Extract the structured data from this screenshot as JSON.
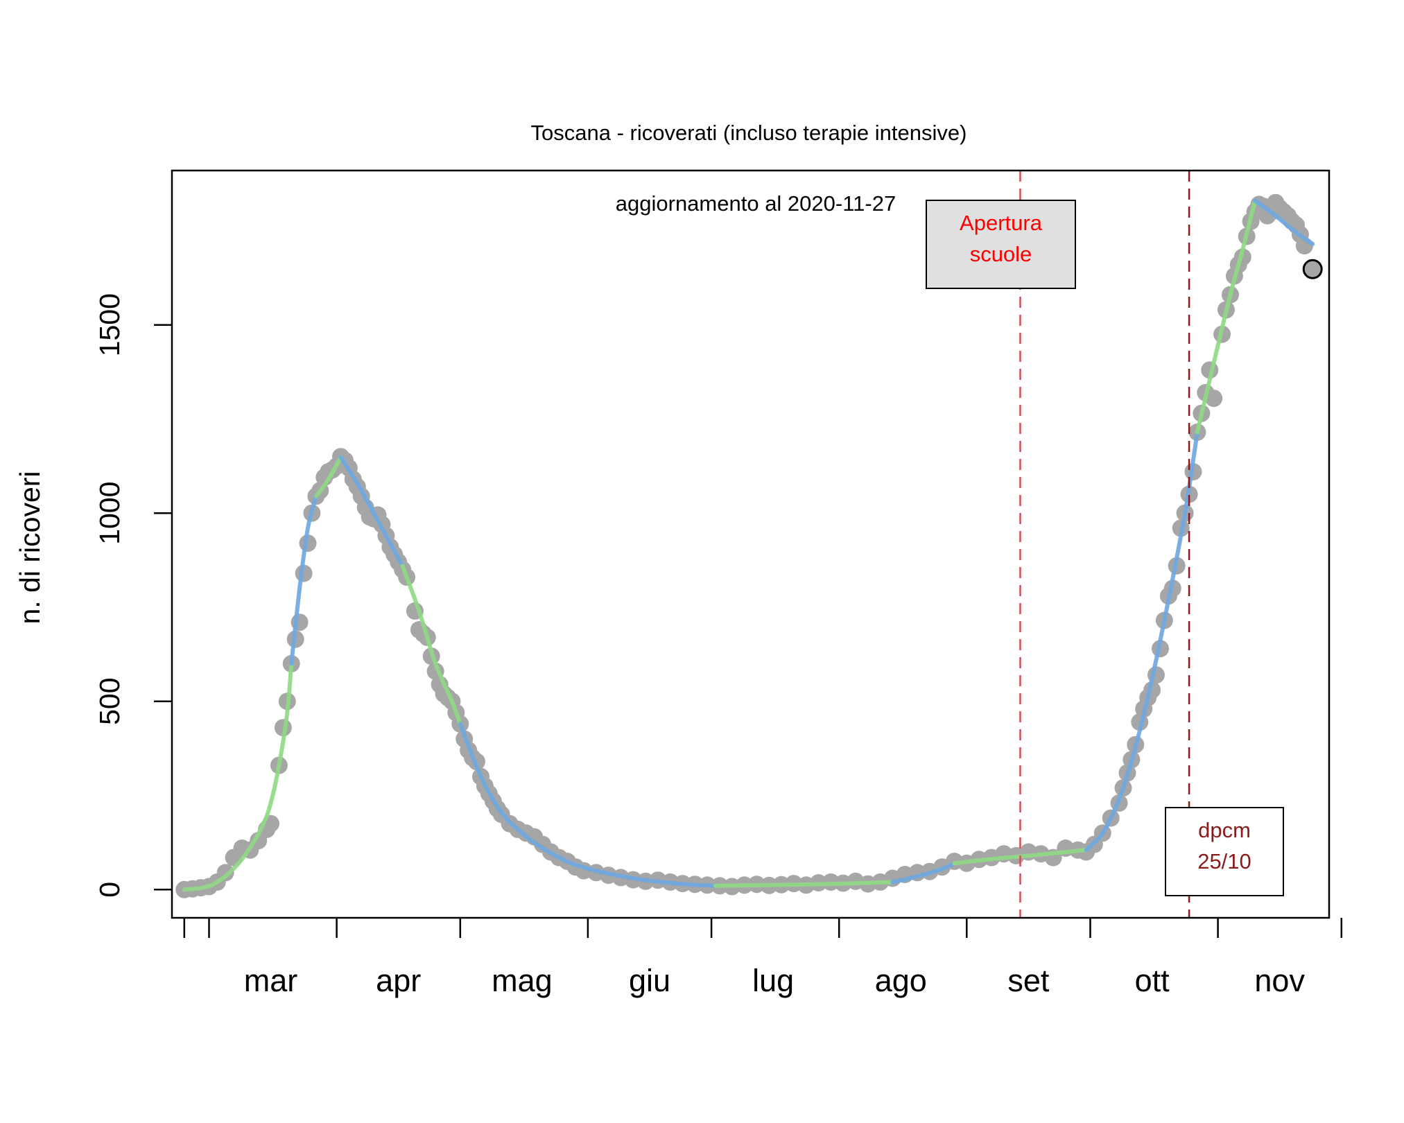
{
  "chart_data": {
    "type": "scatter",
    "title": "Toscana - ricoverati (incluso terapie intensive)",
    "subtitle": "aggiornamento al 2020-11-27",
    "xlabel": "",
    "ylabel": "n. di ricoveri",
    "x_range": [
      "2020-02-21",
      "2020-11-28"
    ],
    "ylim": [
      -75,
      1910
    ],
    "y_ticks": [
      0,
      500,
      1000,
      1500
    ],
    "x_tick_dates": [
      "2020-02-24",
      "2020-03-01",
      "2020-04-01",
      "2020-05-01",
      "2020-06-01",
      "2020-07-01",
      "2020-08-01",
      "2020-09-01",
      "2020-10-01",
      "2020-11-01",
      "2020-12-01"
    ],
    "x_month_labels": [
      {
        "label": "mar",
        "date": "2020-03-16"
      },
      {
        "label": "apr",
        "date": "2020-04-16"
      },
      {
        "label": "mag",
        "date": "2020-05-16"
      },
      {
        "label": "giu",
        "date": "2020-06-16"
      },
      {
        "label": "lug",
        "date": "2020-07-16"
      },
      {
        "label": "ago",
        "date": "2020-08-16"
      },
      {
        "label": "set",
        "date": "2020-09-16"
      },
      {
        "label": "ott",
        "date": "2020-10-16"
      },
      {
        "label": "nov",
        "date": "2020-11-16"
      }
    ],
    "series": [
      {
        "kind": "observed",
        "color": "#a6a6a6",
        "points": [
          [
            "2020-02-24",
            0
          ],
          [
            "2020-02-26",
            2
          ],
          [
            "2020-02-28",
            5
          ],
          [
            "2020-03-01",
            8
          ],
          [
            "2020-03-03",
            20
          ],
          [
            "2020-03-05",
            45
          ],
          [
            "2020-03-07",
            85
          ],
          [
            "2020-03-09",
            110
          ],
          [
            "2020-03-11",
            105
          ],
          [
            "2020-03-13",
            130
          ],
          [
            "2020-03-15",
            160
          ],
          [
            "2020-03-16",
            175
          ],
          [
            "2020-03-18",
            330
          ],
          [
            "2020-03-19",
            430
          ],
          [
            "2020-03-20",
            500
          ],
          [
            "2020-03-21",
            600
          ],
          [
            "2020-03-22",
            665
          ],
          [
            "2020-03-23",
            710
          ],
          [
            "2020-03-24",
            840
          ],
          [
            "2020-03-25",
            920
          ],
          [
            "2020-03-26",
            1000
          ],
          [
            "2020-03-27",
            1045
          ],
          [
            "2020-03-28",
            1060
          ],
          [
            "2020-03-29",
            1095
          ],
          [
            "2020-03-30",
            1110
          ],
          [
            "2020-03-31",
            1115
          ],
          [
            "2020-04-01",
            1125
          ],
          [
            "2020-04-02",
            1150
          ],
          [
            "2020-04-03",
            1140
          ],
          [
            "2020-04-04",
            1120
          ],
          [
            "2020-04-05",
            1090
          ],
          [
            "2020-04-06",
            1070
          ],
          [
            "2020-04-07",
            1045
          ],
          [
            "2020-04-08",
            1015
          ],
          [
            "2020-04-09",
            990
          ],
          [
            "2020-04-10",
            985
          ],
          [
            "2020-04-11",
            995
          ],
          [
            "2020-04-12",
            970
          ],
          [
            "2020-04-13",
            940
          ],
          [
            "2020-04-14",
            910
          ],
          [
            "2020-04-15",
            890
          ],
          [
            "2020-04-16",
            870
          ],
          [
            "2020-04-17",
            850
          ],
          [
            "2020-04-18",
            830
          ],
          [
            "2020-04-20",
            740
          ],
          [
            "2020-04-21",
            690
          ],
          [
            "2020-04-22",
            680
          ],
          [
            "2020-04-23",
            670
          ],
          [
            "2020-04-24",
            620
          ],
          [
            "2020-04-25",
            580
          ],
          [
            "2020-04-26",
            545
          ],
          [
            "2020-04-27",
            520
          ],
          [
            "2020-04-28",
            510
          ],
          [
            "2020-04-29",
            500
          ],
          [
            "2020-04-30",
            470
          ],
          [
            "2020-05-01",
            440
          ],
          [
            "2020-05-02",
            400
          ],
          [
            "2020-05-03",
            370
          ],
          [
            "2020-05-04",
            350
          ],
          [
            "2020-05-05",
            340
          ],
          [
            "2020-05-06",
            300
          ],
          [
            "2020-05-07",
            275
          ],
          [
            "2020-05-08",
            255
          ],
          [
            "2020-05-09",
            235
          ],
          [
            "2020-05-10",
            215
          ],
          [
            "2020-05-11",
            200
          ],
          [
            "2020-05-13",
            175
          ],
          [
            "2020-05-15",
            160
          ],
          [
            "2020-05-17",
            150
          ],
          [
            "2020-05-19",
            140
          ],
          [
            "2020-05-21",
            120
          ],
          [
            "2020-05-23",
            100
          ],
          [
            "2020-05-25",
            85
          ],
          [
            "2020-05-27",
            75
          ],
          [
            "2020-05-29",
            60
          ],
          [
            "2020-05-31",
            50
          ],
          [
            "2020-06-03",
            45
          ],
          [
            "2020-06-06",
            38
          ],
          [
            "2020-06-09",
            32
          ],
          [
            "2020-06-12",
            26
          ],
          [
            "2020-06-15",
            22
          ],
          [
            "2020-06-18",
            25
          ],
          [
            "2020-06-21",
            20
          ],
          [
            "2020-06-24",
            16
          ],
          [
            "2020-06-27",
            14
          ],
          [
            "2020-06-30",
            12
          ],
          [
            "2020-07-03",
            10
          ],
          [
            "2020-07-06",
            8
          ],
          [
            "2020-07-09",
            12
          ],
          [
            "2020-07-12",
            14
          ],
          [
            "2020-07-15",
            11
          ],
          [
            "2020-07-18",
            13
          ],
          [
            "2020-07-21",
            16
          ],
          [
            "2020-07-24",
            12
          ],
          [
            "2020-07-27",
            18
          ],
          [
            "2020-07-30",
            20
          ],
          [
            "2020-08-02",
            17
          ],
          [
            "2020-08-05",
            22
          ],
          [
            "2020-08-08",
            15
          ],
          [
            "2020-08-11",
            20
          ],
          [
            "2020-08-14",
            30
          ],
          [
            "2020-08-17",
            40
          ],
          [
            "2020-08-20",
            45
          ],
          [
            "2020-08-23",
            48
          ],
          [
            "2020-08-26",
            60
          ],
          [
            "2020-08-29",
            75
          ],
          [
            "2020-09-01",
            70
          ],
          [
            "2020-09-04",
            80
          ],
          [
            "2020-09-07",
            85
          ],
          [
            "2020-09-10",
            95
          ],
          [
            "2020-09-13",
            90
          ],
          [
            "2020-09-16",
            100
          ],
          [
            "2020-09-19",
            95
          ],
          [
            "2020-09-22",
            85
          ],
          [
            "2020-09-25",
            110
          ],
          [
            "2020-09-28",
            105
          ],
          [
            "2020-09-30",
            100
          ],
          [
            "2020-10-02",
            120
          ],
          [
            "2020-10-04",
            150
          ],
          [
            "2020-10-06",
            190
          ],
          [
            "2020-10-08",
            230
          ],
          [
            "2020-10-09",
            270
          ],
          [
            "2020-10-10",
            310
          ],
          [
            "2020-10-11",
            345
          ],
          [
            "2020-10-12",
            385
          ],
          [
            "2020-10-13",
            445
          ],
          [
            "2020-10-14",
            480
          ],
          [
            "2020-10-15",
            510
          ],
          [
            "2020-10-16",
            530
          ],
          [
            "2020-10-17",
            570
          ],
          [
            "2020-10-18",
            640
          ],
          [
            "2020-10-19",
            715
          ],
          [
            "2020-10-20",
            780
          ],
          [
            "2020-10-21",
            800
          ],
          [
            "2020-10-22",
            860
          ],
          [
            "2020-10-23",
            960
          ],
          [
            "2020-10-24",
            1000
          ],
          [
            "2020-10-25",
            1050
          ],
          [
            "2020-10-26",
            1110
          ],
          [
            "2020-10-27",
            1215
          ],
          [
            "2020-10-28",
            1265
          ],
          [
            "2020-10-29",
            1320
          ],
          [
            "2020-10-30",
            1380
          ],
          [
            "2020-10-31",
            1305
          ],
          [
            "2020-11-02",
            1475
          ],
          [
            "2020-11-03",
            1540
          ],
          [
            "2020-11-04",
            1580
          ],
          [
            "2020-11-05",
            1630
          ],
          [
            "2020-11-06",
            1660
          ],
          [
            "2020-11-07",
            1680
          ],
          [
            "2020-11-08",
            1735
          ],
          [
            "2020-11-09",
            1775
          ],
          [
            "2020-11-10",
            1800
          ],
          [
            "2020-11-11",
            1820
          ],
          [
            "2020-11-12",
            1815
          ],
          [
            "2020-11-13",
            1790
          ],
          [
            "2020-11-14",
            1800
          ],
          [
            "2020-11-15",
            1825
          ],
          [
            "2020-11-16",
            1810
          ],
          [
            "2020-11-17",
            1800
          ],
          [
            "2020-11-18",
            1790
          ],
          [
            "2020-11-19",
            1775
          ],
          [
            "2020-11-20",
            1765
          ],
          [
            "2020-11-21",
            1740
          ],
          [
            "2020-11-22",
            1710
          ]
        ]
      },
      {
        "kind": "latest",
        "color": "#a6a6a6",
        "stroke": "#000000",
        "points": [
          [
            "2020-11-24",
            1648
          ]
        ]
      }
    ],
    "fit_segments": [
      {
        "color": "#90d985",
        "points": [
          [
            "2020-02-24",
            0
          ],
          [
            "2020-02-28",
            4
          ],
          [
            "2020-03-02",
            14
          ],
          [
            "2020-03-06",
            45
          ],
          [
            "2020-03-10",
            95
          ],
          [
            "2020-03-14",
            170
          ],
          [
            "2020-03-16",
            230
          ],
          [
            "2020-03-18",
            330
          ],
          [
            "2020-03-20",
            470
          ],
          [
            "2020-03-21",
            600
          ]
        ]
      },
      {
        "color": "#6ea8e0",
        "points": [
          [
            "2020-03-21",
            600
          ],
          [
            "2020-03-23",
            800
          ],
          [
            "2020-03-25",
            960
          ],
          [
            "2020-03-27",
            1045
          ]
        ]
      },
      {
        "color": "#90d985",
        "points": [
          [
            "2020-03-27",
            1045
          ],
          [
            "2020-03-30",
            1090
          ],
          [
            "2020-04-02",
            1148
          ]
        ]
      },
      {
        "color": "#6ea8e0",
        "points": [
          [
            "2020-04-02",
            1148
          ],
          [
            "2020-04-06",
            1080
          ],
          [
            "2020-04-10",
            1000
          ],
          [
            "2020-04-14",
            920
          ],
          [
            "2020-04-17",
            860
          ]
        ]
      },
      {
        "color": "#90d985",
        "points": [
          [
            "2020-04-17",
            860
          ],
          [
            "2020-04-21",
            740
          ],
          [
            "2020-04-25",
            600
          ],
          [
            "2020-04-29",
            500
          ],
          [
            "2020-05-01",
            440
          ]
        ]
      },
      {
        "color": "#6ea8e0",
        "points": [
          [
            "2020-05-01",
            440
          ],
          [
            "2020-05-06",
            300
          ],
          [
            "2020-05-11",
            205
          ],
          [
            "2020-05-16",
            150
          ],
          [
            "2020-05-21",
            110
          ],
          [
            "2020-05-28",
            70
          ],
          [
            "2020-06-05",
            45
          ],
          [
            "2020-06-15",
            25
          ],
          [
            "2020-06-25",
            14
          ],
          [
            "2020-07-02",
            10
          ]
        ]
      },
      {
        "color": "#90d985",
        "points": [
          [
            "2020-07-02",
            10
          ],
          [
            "2020-07-15",
            12
          ],
          [
            "2020-07-30",
            15
          ],
          [
            "2020-08-14",
            20
          ]
        ]
      },
      {
        "color": "#6ea8e0",
        "points": [
          [
            "2020-08-14",
            20
          ],
          [
            "2020-08-20",
            35
          ],
          [
            "2020-08-26",
            55
          ],
          [
            "2020-08-29",
            70
          ]
        ]
      },
      {
        "color": "#90d985",
        "points": [
          [
            "2020-08-29",
            70
          ],
          [
            "2020-09-08",
            82
          ],
          [
            "2020-09-18",
            92
          ],
          [
            "2020-09-30",
            105
          ]
        ]
      },
      {
        "color": "#6ea8e0",
        "points": [
          [
            "2020-09-30",
            105
          ],
          [
            "2020-10-04",
            150
          ],
          [
            "2020-10-08",
            240
          ],
          [
            "2020-10-12",
            380
          ],
          [
            "2020-10-16",
            560
          ],
          [
            "2020-10-20",
            770
          ],
          [
            "2020-10-24",
            1000
          ],
          [
            "2020-10-27",
            1215
          ]
        ]
      },
      {
        "color": "#90d985",
        "points": [
          [
            "2020-10-27",
            1215
          ],
          [
            "2020-10-31",
            1400
          ],
          [
            "2020-11-04",
            1580
          ],
          [
            "2020-11-07",
            1700
          ],
          [
            "2020-11-10",
            1830
          ]
        ]
      },
      {
        "color": "#6ea8e0",
        "points": [
          [
            "2020-11-10",
            1830
          ],
          [
            "2020-11-15",
            1790
          ],
          [
            "2020-11-20",
            1745
          ],
          [
            "2020-11-24",
            1715
          ]
        ]
      }
    ],
    "annotations": [
      {
        "label": "Apertura scuole",
        "lines": [
          "Apertura",
          "scuole"
        ],
        "date": "2020-09-14",
        "line_color": "#d94a5c",
        "text_color": "#ff0000",
        "box_fill": "#e0e0e0"
      },
      {
        "label": "dpcm 25/10",
        "lines": [
          "dpcm",
          "25/10"
        ],
        "date": "2020-10-25",
        "line_color": "#8b1a1a",
        "text_color": "#8b1a1a",
        "box_fill": "#ffffff"
      }
    ],
    "grid": false,
    "legend": "none"
  }
}
